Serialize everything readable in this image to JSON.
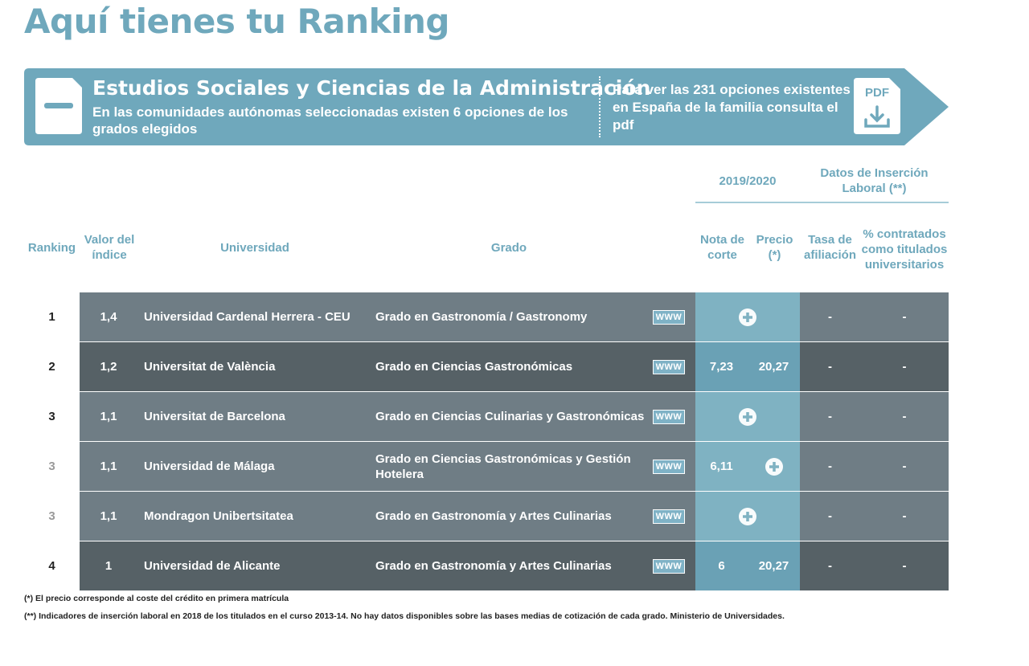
{
  "page_title": "Aquí tienes tu Ranking",
  "banner": {
    "title": "Estudios Sociales y Ciencias de la Administración",
    "subtitle": "En las comunidades autónomas seleccionadas existen 6 opciones de los grados elegidos",
    "pdf_text": "Para ver las 231 opciones existentes en España de la familia consulta el pdf",
    "pdf_label": "PDF"
  },
  "headers": {
    "year": "2019/2020",
    "insercion": "Datos de Inserción Laboral (**)",
    "ranking": "Ranking",
    "valor": "Valor del índice",
    "universidad": "Universidad",
    "grado": "Grado",
    "nota": "Nota de corte",
    "precio": "Precio (*)",
    "tasa": "Tasa de afiliación",
    "pct": "% contratados como titulados universitarios"
  },
  "www_label": "WWW",
  "rows": [
    {
      "rank": "1",
      "valor": "1,4",
      "universidad": "Universidad Cardenal Herrera - CEU",
      "grado": "Grado en Gastronomía / Gastronomy",
      "nota": "",
      "precio": "",
      "tasa": "-",
      "pct": "-"
    },
    {
      "rank": "2",
      "valor": "1,2",
      "universidad": "Universitat de València",
      "grado": "Grado en Ciencias Gastronómicas",
      "nota": "7,23",
      "precio": "20,27",
      "tasa": "-",
      "pct": "-"
    },
    {
      "rank": "3",
      "valor": "1,1",
      "universidad": "Universitat de Barcelona",
      "grado": "Grado en Ciencias Culinarias y Gastronómicas",
      "nota": "",
      "precio": "",
      "tasa": "-",
      "pct": "-"
    },
    {
      "rank": "3",
      "valor": "1,1",
      "universidad": "Universidad de Málaga",
      "grado": "Grado en Ciencias Gastronómicas y Gestión Hotelera",
      "nota": "6,11",
      "precio": "",
      "tasa": "-",
      "pct": "-"
    },
    {
      "rank": "3",
      "valor": "1,1",
      "universidad": "Mondragon Unibertsitatea",
      "grado": "Grado en Gastronomía y Artes Culinarias",
      "nota": "",
      "precio": "",
      "tasa": "-",
      "pct": "-"
    },
    {
      "rank": "4",
      "valor": "1",
      "universidad": "Universidad de Alicante",
      "grado": "Grado en Gastronomía y Artes Culinarias",
      "nota": "6",
      "precio": "20,27",
      "tasa": "-",
      "pct": "-"
    }
  ],
  "footnotes": {
    "f1": "(*) El precio corresponde al coste del crédito en primera matrícula",
    "f2": "(**) Indicadores de inserción laboral en 2018 de los titulados en el curso 2013-14. No hay datos disponibles sobre las bases medias de cotización de cada grado. Ministerio de Universidades."
  },
  "colors": {
    "accent": "#6fa8bc",
    "row_light": "#6f7d85",
    "row_dark": "#566166",
    "nota_light": "#7fb2c2",
    "nota_dark": "#6aa1b5",
    "tasa_light": "#6f7d85",
    "tasa_dark": "#566166"
  }
}
